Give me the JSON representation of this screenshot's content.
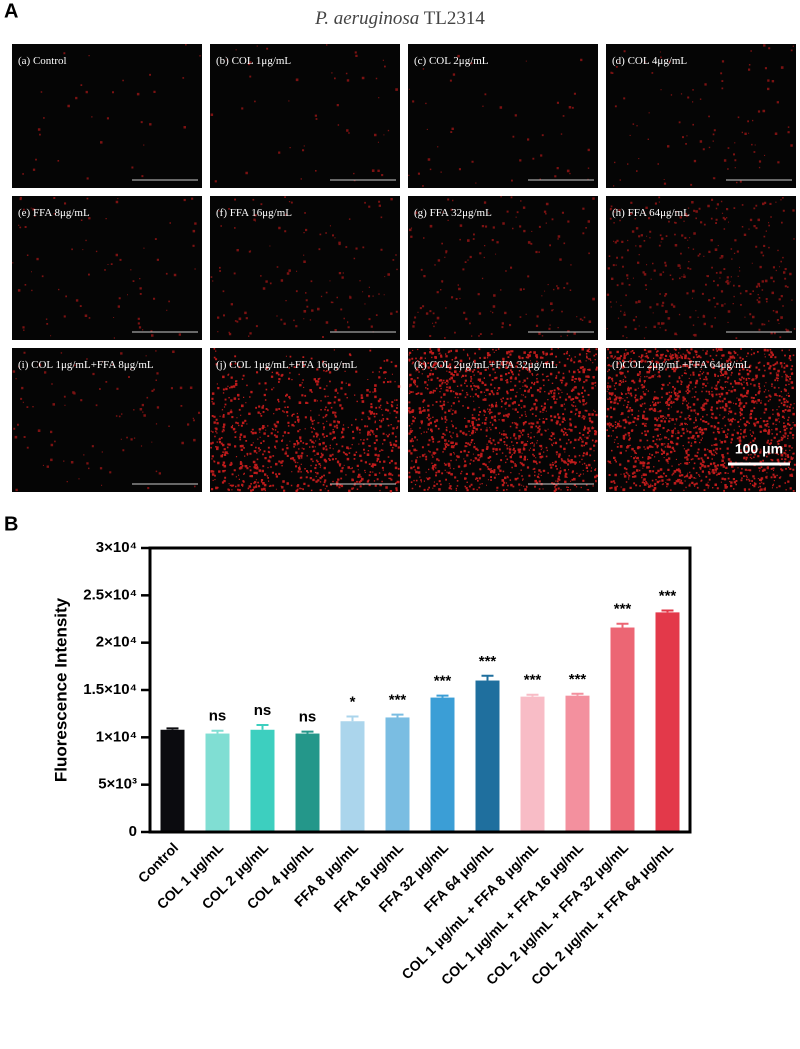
{
  "figure_labels": {
    "a": "A",
    "b": "B"
  },
  "microscopy": {
    "title": {
      "species": "P. aeruginosa",
      "strain": "TL2314"
    },
    "panels": [
      {
        "label": "(a) Control"
      },
      {
        "label": "(b) COL 1μg/mL"
      },
      {
        "label": "(c) COL 2μg/mL"
      },
      {
        "label": "(d) COL 4μg/mL"
      },
      {
        "label": "(e) FFA 8μg/mL"
      },
      {
        "label": "(f) FFA 16μg/mL"
      },
      {
        "label": "(g) FFA 32μg/mL"
      },
      {
        "label": "(h) FFA 64μg/mL"
      },
      {
        "label": "(i) COL 1μg/mL+FFA 8μg/mL"
      },
      {
        "label": "(j) COL 1μg/mL+FFA 16μg/mL"
      },
      {
        "label": "(k) COL 2μg/mL+FFA 32μg/mL"
      },
      {
        "label": "(l)COL 2μg/mL+FFA 64μg/mL"
      }
    ],
    "scale_bar": "100 μm"
  },
  "chart_data": {
    "type": "bar",
    "y_label": "Fluorescence Intensity",
    "categories": [
      "Control",
      "COL 1 μg/mL",
      "COL 2 μg/mL",
      "COL 4 μg/mL",
      "FFA 8 μg/mL",
      "FFA 16 μg/mL",
      "FFA 32 μg/mL",
      "FFA 64 μg/mL",
      "COL 1 μg/mL + FFA 8 μg/mL",
      "COL 1 μg/mL + FFA 16 μg/mL",
      "COL 2 μg/mL + FFA 32 μg/mL",
      "COL 2 μg/mL + FFA 64 μg/mL"
    ],
    "values": [
      10800,
      10400,
      10800,
      10400,
      11700,
      12100,
      14200,
      16000,
      14300,
      14400,
      21600,
      23200
    ],
    "errors": [
      150,
      300,
      500,
      200,
      500,
      300,
      200,
      500,
      200,
      200,
      400,
      200
    ],
    "colors": [
      "#0b0b0f",
      "#80ded3",
      "#3dcfbf",
      "#24978a",
      "#abd5ec",
      "#7abde2",
      "#3b9ed6",
      "#1f6f9e",
      "#f8bcc6",
      "#f3909e",
      "#ec6674",
      "#e3394a"
    ],
    "significance": [
      null,
      "ns",
      "ns",
      "ns",
      "*",
      "***",
      "***",
      "***",
      "***",
      "***",
      "***",
      "***"
    ],
    "ylim": [
      0,
      30000
    ],
    "yticks": [
      {
        "value": 0,
        "label": "0"
      },
      {
        "value": 5000,
        "label": "5×10³"
      },
      {
        "value": 10000,
        "label": "1×10⁴"
      },
      {
        "value": 15000,
        "label": "1.5×10⁴"
      },
      {
        "value": 20000,
        "label": "2×10⁴"
      },
      {
        "value": 25000,
        "label": "2.5×10⁴"
      },
      {
        "value": 30000,
        "label": "3×10⁴"
      }
    ]
  }
}
